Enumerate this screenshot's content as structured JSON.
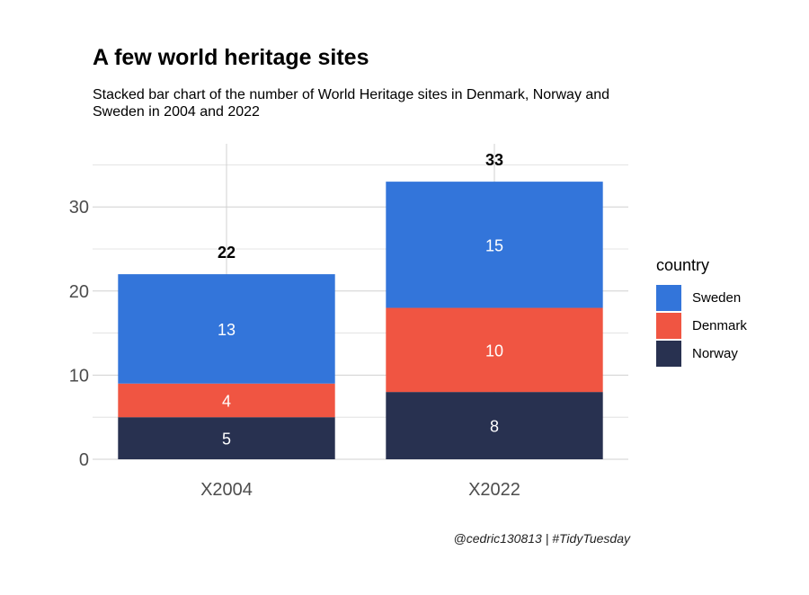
{
  "title": "A few world heritage sites",
  "subtitle": "Stacked bar chart of the number of World Heritage sites in Denmark, Norway and Sweden in 2004 and 2022",
  "caption": "@cedric130813 | #TidyTuesday",
  "legend": {
    "title": "country",
    "items": [
      {
        "label": "Sweden",
        "color": "#3375da"
      },
      {
        "label": "Denmark",
        "color": "#f05542"
      },
      {
        "label": "Norway",
        "color": "#283150"
      }
    ]
  },
  "chart_data": {
    "type": "bar",
    "stacked": true,
    "categories": [
      "X2004",
      "X2022"
    ],
    "series": [
      {
        "name": "Norway",
        "color": "#283150",
        "values": [
          5,
          8
        ]
      },
      {
        "name": "Denmark",
        "color": "#f05542",
        "values": [
          4,
          10
        ]
      },
      {
        "name": "Sweden",
        "color": "#3375da",
        "values": [
          13,
          15
        ]
      }
    ],
    "totals": [
      22,
      33
    ],
    "ylim": [
      0,
      37.5
    ],
    "yticks": [
      0,
      10,
      20,
      30
    ],
    "xlabel": "",
    "ylabel": "",
    "grid": true,
    "legend_position": "right"
  }
}
